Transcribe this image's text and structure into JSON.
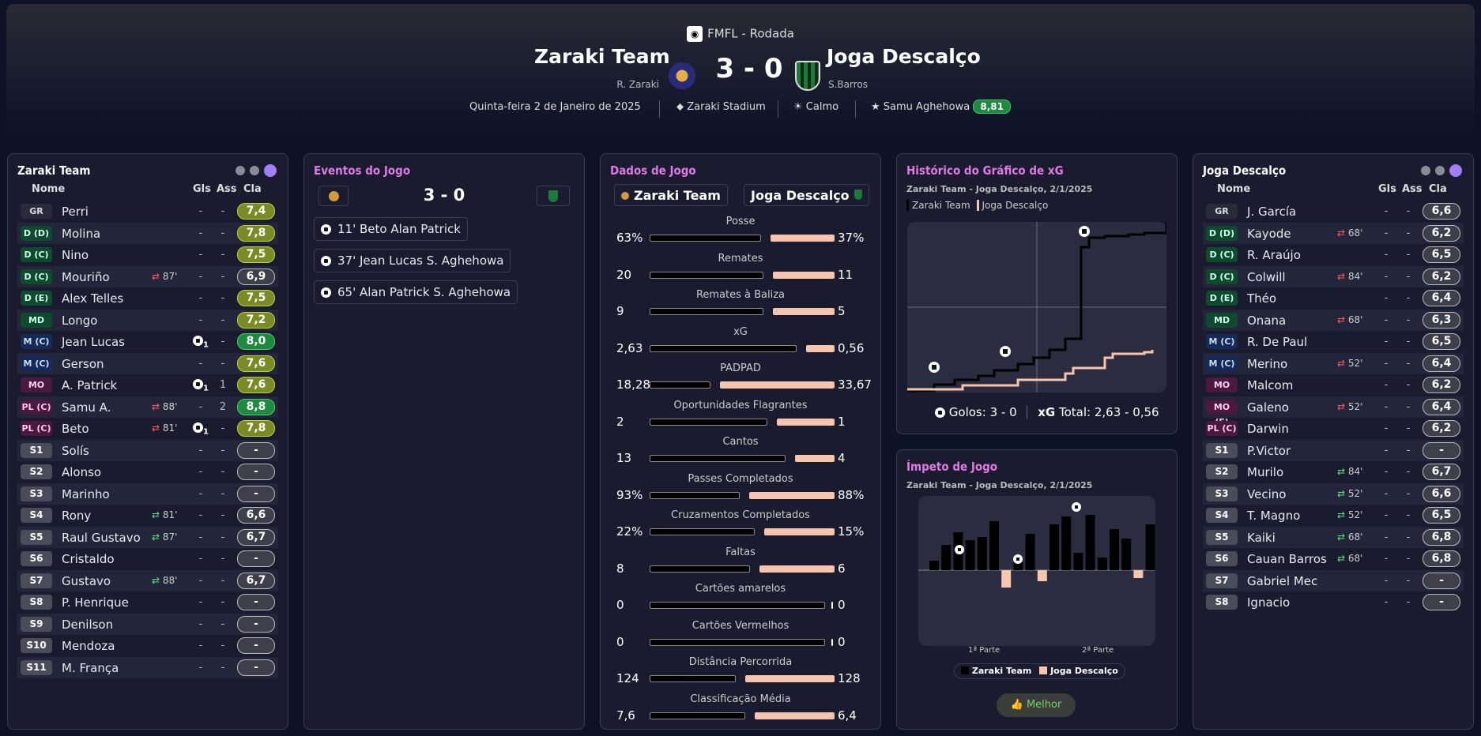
{
  "header": {
    "competition": "FMFL - Rodada",
    "home_team": "Zaraki Team",
    "home_manager": "R. Zaraki",
    "score": "3 - 0",
    "away_team": "Joga Descalço",
    "away_manager": "S.Barros",
    "date": "Quinta-feira 2 de Janeiro de 2025",
    "stadium": "Zaraki Stadium",
    "weather": "Calmo",
    "motm_name": "Samu Aghehowa",
    "motm_rating": "8,81"
  },
  "columns": {
    "name": "Nome",
    "gls": "Gls",
    "ass": "Ass",
    "cla": "Cla"
  },
  "home": {
    "title": "Zaraki Team",
    "players": [
      {
        "pos": "GR",
        "name": "Perri",
        "sub": "",
        "gls": "-",
        "ass": "-",
        "rating": "7,4"
      },
      {
        "pos": "D (D)",
        "name": "Molina",
        "sub": "",
        "gls": "-",
        "ass": "-",
        "rating": "7,8"
      },
      {
        "pos": "D (C)",
        "name": "Nino",
        "sub": "",
        "gls": "-",
        "ass": "-",
        "rating": "7,5"
      },
      {
        "pos": "D (C)",
        "name": "Mouriño",
        "sub": "87'",
        "gls": "-",
        "ass": "-",
        "rating": "6,9"
      },
      {
        "pos": "D (E)",
        "name": "Alex Telles",
        "sub": "",
        "gls": "-",
        "ass": "-",
        "rating": "7,5"
      },
      {
        "pos": "MD",
        "name": "Longo",
        "sub": "",
        "gls": "-",
        "ass": "-",
        "rating": "7,2"
      },
      {
        "pos": "M (C)",
        "name": "Jean Lucas",
        "sub": "",
        "gls": "1",
        "ass": "-",
        "rating": "8,0"
      },
      {
        "pos": "M (C)",
        "name": "Gerson",
        "sub": "",
        "gls": "-",
        "ass": "-",
        "rating": "7,6"
      },
      {
        "pos": "MO (C)",
        "name": "A. Patrick",
        "sub": "",
        "gls": "1",
        "ass": "1",
        "rating": "7,6"
      },
      {
        "pos": "PL (C)",
        "name": "Samu A.",
        "sub": "88'",
        "gls": "-",
        "ass": "2",
        "rating": "8,8"
      },
      {
        "pos": "PL (C)",
        "name": "Beto",
        "sub": "81'",
        "gls": "1",
        "ass": "-",
        "rating": "7,8"
      },
      {
        "pos": "S1",
        "name": "Solís",
        "sub": "",
        "gls": "-",
        "ass": "-",
        "rating": "-"
      },
      {
        "pos": "S2",
        "name": "Alonso",
        "sub": "",
        "gls": "-",
        "ass": "-",
        "rating": "-"
      },
      {
        "pos": "S3",
        "name": "Marinho",
        "sub": "",
        "gls": "-",
        "ass": "-",
        "rating": "-"
      },
      {
        "pos": "S4",
        "name": "Rony",
        "sub": "81'",
        "gls": "-",
        "ass": "-",
        "rating": "6,6"
      },
      {
        "pos": "S5",
        "name": "Raul Gustavo",
        "sub": "87'",
        "gls": "-",
        "ass": "-",
        "rating": "6,7"
      },
      {
        "pos": "S6",
        "name": "Cristaldo",
        "sub": "",
        "gls": "-",
        "ass": "-",
        "rating": "-"
      },
      {
        "pos": "S7",
        "name": "Gustavo",
        "sub": "88'",
        "gls": "-",
        "ass": "-",
        "rating": "6,7"
      },
      {
        "pos": "S8",
        "name": "P. Henrique",
        "sub": "",
        "gls": "-",
        "ass": "-",
        "rating": "-"
      },
      {
        "pos": "S9",
        "name": "Denilson",
        "sub": "",
        "gls": "-",
        "ass": "-",
        "rating": "-"
      },
      {
        "pos": "S10",
        "name": "Mendoza",
        "sub": "",
        "gls": "-",
        "ass": "-",
        "rating": "-"
      },
      {
        "pos": "S11",
        "name": "M. França",
        "sub": "",
        "gls": "-",
        "ass": "-",
        "rating": "-"
      }
    ]
  },
  "away": {
    "title": "Joga Descalço",
    "players": [
      {
        "pos": "GR",
        "name": "J. García",
        "sub": "",
        "gls": "-",
        "ass": "-",
        "rating": "6,6"
      },
      {
        "pos": "D (D)",
        "name": "Kayode",
        "sub": "68'",
        "gls": "-",
        "ass": "-",
        "rating": "6,2"
      },
      {
        "pos": "D (C)",
        "name": "R. Araújo",
        "sub": "",
        "gls": "-",
        "ass": "-",
        "rating": "6,5"
      },
      {
        "pos": "D (C)",
        "name": "Colwill",
        "sub": "84'",
        "gls": "-",
        "ass": "-",
        "rating": "6,2"
      },
      {
        "pos": "D (E)",
        "name": "Théo",
        "sub": "",
        "gls": "-",
        "ass": "-",
        "rating": "6,4"
      },
      {
        "pos": "MD",
        "name": "Onana",
        "sub": "68'",
        "gls": "-",
        "ass": "-",
        "rating": "6,3"
      },
      {
        "pos": "M (C)",
        "name": "R. De Paul",
        "sub": "",
        "gls": "-",
        "ass": "-",
        "rating": "6,5"
      },
      {
        "pos": "M (C)",
        "name": "Merino",
        "sub": "52'",
        "gls": "-",
        "ass": "-",
        "rating": "6,4"
      },
      {
        "pos": "MO (D)",
        "name": "Malcom",
        "sub": "",
        "gls": "-",
        "ass": "-",
        "rating": "6,2"
      },
      {
        "pos": "MO (E)",
        "name": "Galeno",
        "sub": "52'",
        "gls": "-",
        "ass": "-",
        "rating": "6,4"
      },
      {
        "pos": "PL (C)",
        "name": "Darwin",
        "sub": "",
        "gls": "-",
        "ass": "-",
        "rating": "6,2"
      },
      {
        "pos": "S1",
        "name": "P.Victor",
        "sub": "",
        "gls": "-",
        "ass": "-",
        "rating": "-"
      },
      {
        "pos": "S2",
        "name": "Murilo",
        "sub": "84'",
        "gls": "-",
        "ass": "-",
        "rating": "6,7"
      },
      {
        "pos": "S3",
        "name": "Vecino",
        "sub": "52'",
        "gls": "-",
        "ass": "-",
        "rating": "6,6"
      },
      {
        "pos": "S4",
        "name": "T. Magno",
        "sub": "52'",
        "gls": "-",
        "ass": "-",
        "rating": "6,5"
      },
      {
        "pos": "S5",
        "name": "Kaiki",
        "sub": "68'",
        "gls": "-",
        "ass": "-",
        "rating": "6,8"
      },
      {
        "pos": "S6",
        "name": "Cauan Barros",
        "sub": "68'",
        "gls": "-",
        "ass": "-",
        "rating": "6,8"
      },
      {
        "pos": "S7",
        "name": "Gabriel Mec",
        "sub": "",
        "gls": "-",
        "ass": "-",
        "rating": "-"
      },
      {
        "pos": "S8",
        "name": "Ignacio",
        "sub": "",
        "gls": "-",
        "ass": "-",
        "rating": "-"
      }
    ]
  },
  "events": {
    "title": "Eventos do Jogo",
    "score": "3 - 0",
    "items": [
      {
        "minute": "11'",
        "scorer": "Beto",
        "assist": "Alan Patrick"
      },
      {
        "minute": "37'",
        "scorer": "Jean Lucas",
        "assist": "S. Aghehowa"
      },
      {
        "minute": "65'",
        "scorer": "Alan Patrick",
        "assist": "S. Aghehowa"
      }
    ]
  },
  "stats": {
    "title": "Dados de Jogo",
    "home_label": "Zaraki Team",
    "away_label": "Joga Descalço",
    "items": [
      {
        "label": "Posse",
        "home": "63%",
        "away": "37%",
        "h": 63,
        "a": 37
      },
      {
        "label": "Remates",
        "home": "20",
        "away": "11",
        "h": 20,
        "a": 11
      },
      {
        "label": "Remates à Baliza",
        "home": "9",
        "away": "5",
        "h": 9,
        "a": 5
      },
      {
        "label": "xG",
        "home": "2,63",
        "away": "0,56",
        "h": 2.63,
        "a": 0.56
      },
      {
        "label": "PADPAD",
        "home": "18,28",
        "away": "33,67",
        "h": 18.28,
        "a": 33.67
      },
      {
        "label": "Oportunidades Flagrantes",
        "home": "2",
        "away": "1",
        "h": 2,
        "a": 1
      },
      {
        "label": "Cantos",
        "home": "13",
        "away": "4",
        "h": 13,
        "a": 4
      },
      {
        "label": "Passes Completados",
        "home": "93%",
        "away": "88%",
        "h": 93,
        "a": 88
      },
      {
        "label": "Cruzamentos Completados",
        "home": "22%",
        "away": "15%",
        "h": 22,
        "a": 15
      },
      {
        "label": "Faltas",
        "home": "8",
        "away": "6",
        "h": 8,
        "a": 6
      },
      {
        "label": "Cartões amarelos",
        "home": "0",
        "away": "0",
        "h": 0,
        "a": 0
      },
      {
        "label": "Cartões Vermelhos",
        "home": "0",
        "away": "0",
        "h": 0,
        "a": 0
      },
      {
        "label": "Distância Percorrida",
        "home": "124",
        "away": "128",
        "h": 124,
        "a": 128
      },
      {
        "label": "Classificação Média",
        "home": "7,6",
        "away": "6,4",
        "h": 7.6,
        "a": 6.4
      }
    ]
  },
  "xg": {
    "title": "Histórico do Gráfico de xG",
    "subtitle": "Zaraki Team - Joga Descalço, 2/1/2025",
    "legend_home": "Zaraki Team",
    "legend_away": "Joga Descalço",
    "goals_label": "Golos:",
    "goals_value": "3 - 0",
    "xg_label": "xG",
    "total_label": "Total:",
    "total_value": "2,63 - 0,56"
  },
  "momentum": {
    "title": "Ímpeto de Jogo",
    "subtitle": "Zaraki Team - Joga Descalço, 2/1/2025",
    "half1": "1ª Parte",
    "half2": "2ª Parte",
    "legend_home": "Zaraki Team",
    "legend_away": "Joga Descalço",
    "button": "Melhor"
  },
  "colors": {
    "accent": "#e07ae6",
    "home": "#000000",
    "away": "#f7c4ae",
    "good": "#1e8a3d"
  }
}
